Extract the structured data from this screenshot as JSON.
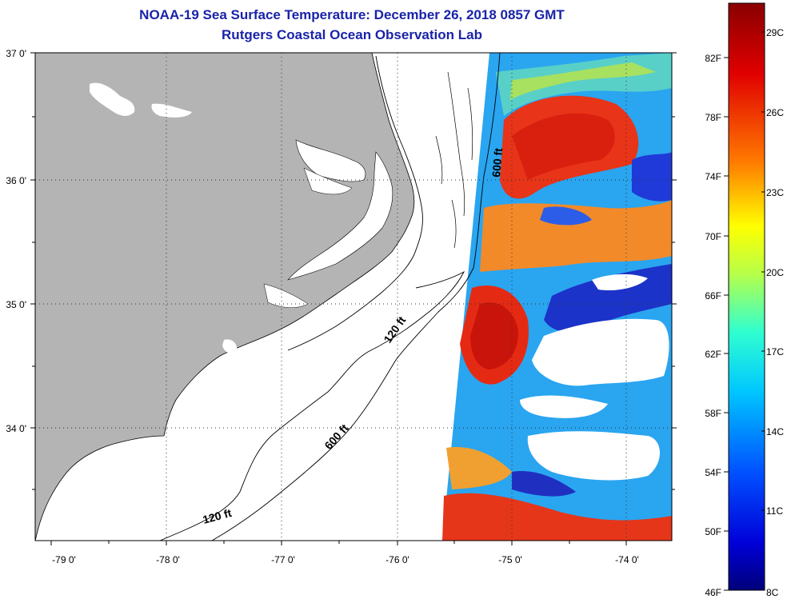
{
  "header": {
    "title": "NOAA-19 Sea Surface Temperature:  December 26, 2018 0857 GMT",
    "subtitle": "Rutgers Coastal Ocean Observation Lab"
  },
  "map": {
    "lat_labels": [
      "37 0'",
      "36 0'",
      "35 0'",
      "34 0'"
    ],
    "lon_labels": [
      "-79 0'",
      "-78 0'",
      "-77 0'",
      "-76 0'",
      "-75 0'",
      "-74 0'"
    ],
    "isobath_labels": {
      "shelf_600_north": "600 ft",
      "shelf_120": "120 ft",
      "shelf_600_south": "600 ft",
      "shelf_120_south": "120 ft"
    },
    "colors": {
      "land": "#b4b4b4",
      "no_data": "#ffffff"
    }
  },
  "colorbar": {
    "fahrenheit": [
      "82F",
      "78F",
      "74F",
      "70F",
      "66F",
      "62F",
      "58F",
      "54F",
      "50F",
      "46F"
    ],
    "celsius": [
      "29C",
      "26C",
      "23C",
      "20C",
      "17C",
      "14C",
      "11C",
      "8C"
    ],
    "gradient": [
      "#7f0000",
      "#ff0000",
      "#ff7f00",
      "#ffff00",
      "#7fff7f",
      "#00ffff",
      "#007fff",
      "#0000ff",
      "#00007f"
    ]
  }
}
